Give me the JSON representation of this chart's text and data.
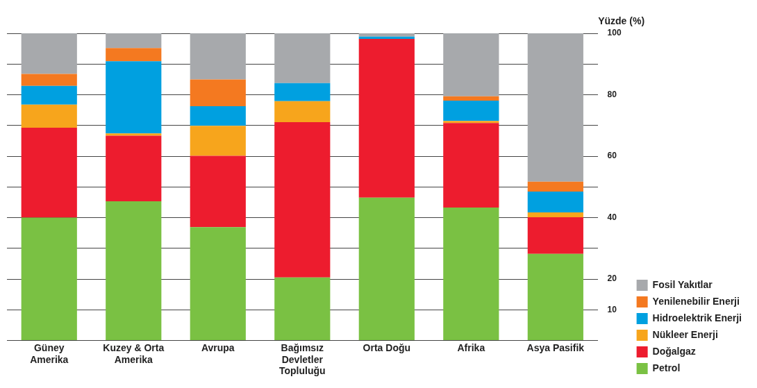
{
  "chart_data": {
    "type": "bar",
    "stacked": true,
    "ylabel": "Yüzde (%)",
    "categories": [
      "Güney Amerika",
      "Kuzey & Orta Amerika",
      "Avrupa",
      "Bağımsız Devletler Topluluğu",
      "Orta Doğu",
      "Afrika",
      "Asya Pasifik"
    ],
    "series": [
      {
        "name": "Petrol",
        "color": "#7ac143",
        "values": [
          40,
          45.3,
          36.9,
          20.5,
          46.5,
          43.3,
          28.2
        ]
      },
      {
        "name": "Doğalgaz",
        "color": "#ed1c2e",
        "values": [
          29.3,
          21.4,
          23.2,
          50.6,
          51.7,
          27.5,
          11.9
        ]
      },
      {
        "name": "Nükleer Enerji",
        "color": "#f7a51c",
        "values": [
          7.5,
          0.7,
          9.8,
          6.8,
          0,
          0.7,
          1.6
        ]
      },
      {
        "name": "Hidroelektrik Enerji",
        "color": "#00a0e0",
        "values": [
          6.1,
          23.5,
          6.4,
          5.9,
          0.7,
          6.6,
          6.8
        ]
      },
      {
        "name": "Yenilenebilir Enerji",
        "color": "#f47920",
        "values": [
          3.9,
          4.3,
          8.7,
          0,
          0,
          1.4,
          3.2
        ]
      },
      {
        "name": "Fosil Yakıtlar",
        "color": "#a7a9ac",
        "values": [
          13.2,
          4.8,
          15,
          16.2,
          1.1,
          20.5,
          48.3
        ]
      }
    ],
    "ylim": [
      0,
      100
    ],
    "yticks": [
      {
        "value": 0,
        "label": null
      },
      10,
      20,
      {
        "value": 30,
        "label": null
      },
      40,
      {
        "value": 50,
        "label": null
      },
      60,
      {
        "value": 70,
        "label": null
      },
      80,
      {
        "value": 90,
        "label": null
      },
      100
    ],
    "grid": "y",
    "legend": "bottom right"
  }
}
